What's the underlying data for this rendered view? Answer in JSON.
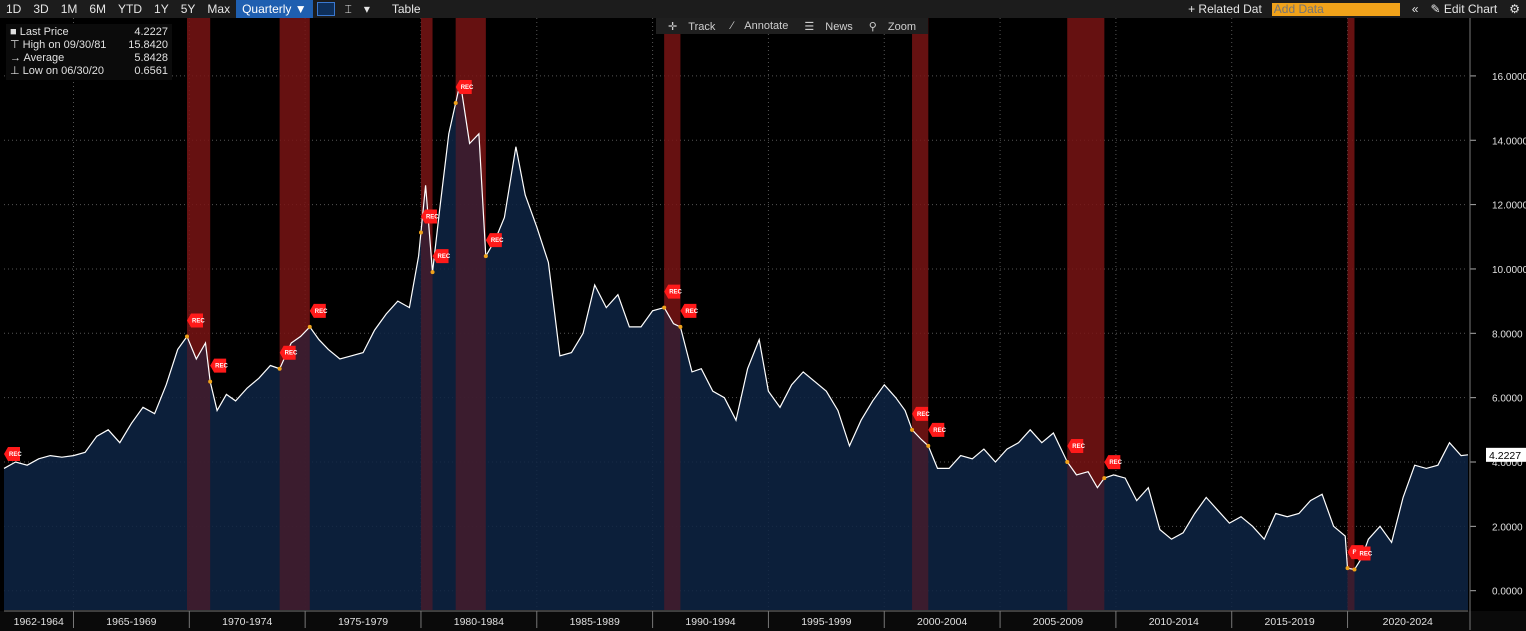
{
  "toolbar": {
    "periods": [
      "1D",
      "3D",
      "1M",
      "6M",
      "YTD",
      "1Y",
      "5Y",
      "Max"
    ],
    "frequency": "Quarterly ▼",
    "table_label": "Table",
    "related_label": "+ Related Dat",
    "add_data_placeholder": "Add Data",
    "edit_chart_label": "Edit Chart"
  },
  "subbar": {
    "track": "Track",
    "annotate": "Annotate",
    "news": "News",
    "zoom": "Zoom"
  },
  "legend": {
    "last_label": "Last Price",
    "last_value": "4.2227",
    "high_label": "High on 09/30/81",
    "high_value": "15.8420",
    "avg_label": "Average",
    "avg_value": "5.8428",
    "low_label": "Low on 06/30/20",
    "low_value": "0.6561"
  },
  "last_price_tag": "4.2227",
  "rec_text": "REC",
  "colors": {
    "line": "#ffffff",
    "area": "#0e2444",
    "recession": "#7a1515",
    "rec_marker": "#ff1a1a",
    "accent": "#1f5fb0",
    "add_data": "#f0a21a"
  },
  "chart_data": {
    "type": "area",
    "y_ticks": [
      "16.0000",
      "14.0000",
      "12.0000",
      "10.0000",
      "8.0000",
      "6.0000",
      "4.0000",
      "2.0000",
      "0.0000"
    ],
    "ylim": [
      -0.6,
      17.8
    ],
    "x_range": [
      1962.0,
      2025.2
    ],
    "x_labels": [
      "1962-1964",
      "1965-1969",
      "1970-1974",
      "1975-1979",
      "1980-1984",
      "1985-1989",
      "1990-1994",
      "1995-1999",
      "2000-2004",
      "2005-2009",
      "2010-2014",
      "2015-2019",
      "2020-2024"
    ],
    "recessions": [
      [
        1969.9,
        1970.9
      ],
      [
        1973.9,
        1975.2
      ],
      [
        1980.0,
        1980.5
      ],
      [
        1981.5,
        1982.8
      ],
      [
        1990.5,
        1991.2
      ],
      [
        2001.2,
        2001.9
      ],
      [
        2007.9,
        2009.5
      ],
      [
        2020.0,
        2020.3
      ]
    ],
    "series": [
      {
        "x": [
          1962.0,
          1962.5,
          1963.0,
          1963.5,
          1964.0,
          1964.5,
          1965.0,
          1965.5,
          1966.0,
          1966.5,
          1967.0,
          1967.5,
          1968.0,
          1968.5,
          1969.0,
          1969.5,
          1969.9,
          1970.3,
          1970.7,
          1970.9,
          1971.2,
          1971.6,
          1972.0,
          1972.5,
          1973.0,
          1973.5,
          1973.9,
          1974.4,
          1974.8,
          1975.2,
          1975.6,
          1976.0,
          1976.5,
          1977.0,
          1977.5,
          1978.0,
          1978.5,
          1979.0,
          1979.5,
          1979.9,
          1980.2,
          1980.5,
          1980.8,
          1981.2,
          1981.7,
          1982.1,
          1982.5,
          1982.8,
          1983.2,
          1983.6,
          1984.1,
          1984.5,
          1985.0,
          1985.5,
          1986.0,
          1986.5,
          1987.0,
          1987.5,
          1988.0,
          1988.5,
          1989.0,
          1989.5,
          1990.0,
          1990.5,
          1990.9,
          1991.2,
          1991.7,
          1992.1,
          1992.6,
          1993.1,
          1993.6,
          1994.1,
          1994.6,
          1995.0,
          1995.5,
          1996.0,
          1996.5,
          1997.0,
          1997.5,
          1998.0,
          1998.5,
          1999.0,
          1999.5,
          2000.0,
          2000.5,
          2000.9,
          2001.2,
          2001.6,
          2001.9,
          2002.3,
          2002.8,
          2003.3,
          2003.8,
          2004.3,
          2004.8,
          2005.3,
          2005.8,
          2006.3,
          2006.8,
          2007.3,
          2007.9,
          2008.3,
          2008.8,
          2009.2,
          2009.5,
          2009.9,
          2010.4,
          2010.9,
          2011.4,
          2011.9,
          2012.4,
          2012.9,
          2013.4,
          2013.9,
          2014.4,
          2014.9,
          2015.4,
          2015.9,
          2016.4,
          2016.9,
          2017.4,
          2017.9,
          2018.4,
          2018.9,
          2019.4,
          2019.9,
          2020.0,
          2020.3,
          2020.6,
          2020.9,
          2021.4,
          2021.9,
          2022.4,
          2022.9,
          2023.4,
          2023.9,
          2024.4,
          2024.9,
          2025.2
        ],
        "y": [
          3.8,
          4.0,
          3.9,
          4.1,
          4.2,
          4.15,
          4.2,
          4.3,
          4.8,
          5.0,
          4.6,
          5.2,
          5.7,
          5.5,
          6.4,
          7.5,
          7.9,
          7.2,
          7.7,
          6.5,
          5.6,
          6.1,
          5.9,
          6.3,
          6.6,
          7.0,
          6.9,
          7.7,
          7.9,
          8.2,
          7.8,
          7.5,
          7.2,
          7.3,
          7.4,
          8.1,
          8.6,
          9.0,
          8.8,
          10.4,
          12.6,
          9.9,
          11.8,
          14.2,
          15.8,
          13.9,
          14.2,
          10.4,
          10.9,
          11.6,
          13.8,
          12.3,
          11.3,
          10.2,
          7.3,
          7.4,
          8.0,
          9.5,
          8.8,
          9.2,
          8.2,
          8.2,
          8.7,
          8.8,
          8.3,
          8.2,
          6.8,
          6.9,
          6.2,
          6.0,
          5.3,
          6.9,
          7.8,
          6.2,
          5.7,
          6.4,
          6.8,
          6.5,
          6.2,
          5.6,
          4.5,
          5.3,
          5.9,
          6.4,
          6.0,
          5.6,
          5.0,
          4.7,
          4.5,
          3.8,
          3.8,
          4.2,
          4.1,
          4.4,
          4.0,
          4.4,
          4.6,
          5.0,
          4.6,
          4.9,
          4.0,
          3.6,
          3.7,
          3.2,
          3.5,
          3.6,
          3.5,
          2.8,
          3.2,
          1.9,
          1.6,
          1.8,
          2.4,
          2.9,
          2.5,
          2.1,
          2.3,
          2.0,
          1.6,
          2.4,
          2.3,
          2.4,
          2.8,
          3.0,
          2.0,
          1.7,
          0.7,
          0.66,
          1.0,
          1.6,
          2.0,
          1.5,
          2.9,
          3.9,
          3.8,
          3.9,
          4.6,
          4.2,
          4.2227
        ]
      }
    ]
  }
}
